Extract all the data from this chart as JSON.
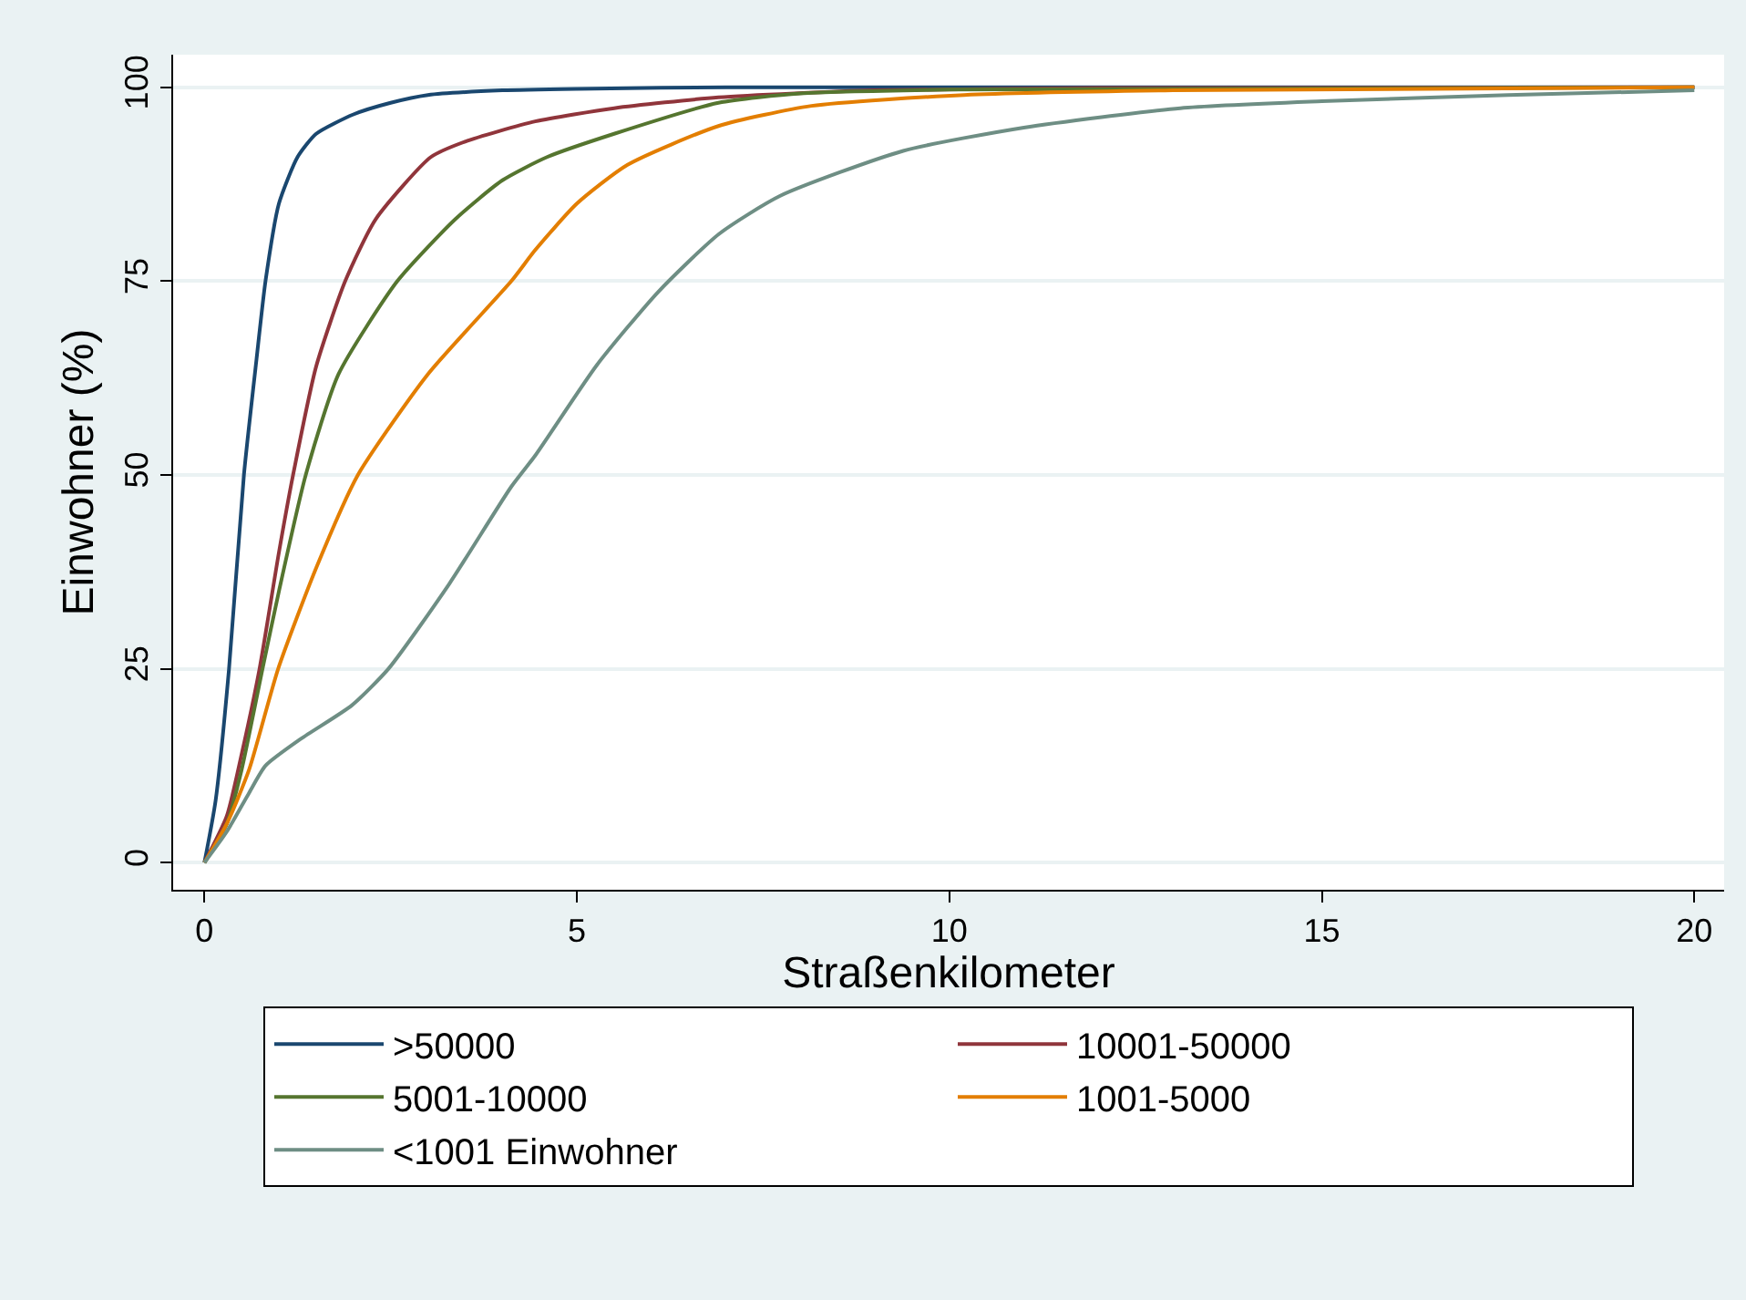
{
  "chart_data": {
    "type": "line",
    "xlabel": "Straßenkilometer",
    "ylabel": "Einwohner (%)",
    "xlim": [
      -0.42,
      20.4
    ],
    "xticks": [
      0,
      5,
      10,
      15,
      20
    ],
    "ylim": [
      -3.5,
      104.2
    ],
    "yticks": [
      0,
      25,
      50,
      75,
      100
    ],
    "grid": "y",
    "legend": "bottom",
    "marker": "none",
    "line_style": "solid",
    "series": [
      {
        "name": ">50000",
        "color": "#1a476f",
        "x": [
          0,
          0.15,
          0.33,
          0.53,
          0.7,
          0.82,
          1,
          1.25,
          1.5,
          2,
          2.5,
          3,
          4,
          5,
          7,
          20
        ],
        "values": [
          0,
          8,
          25,
          50,
          65,
          75,
          85,
          91,
          94,
          96.5,
          98,
          99,
          99.6,
          99.8,
          100,
          100
        ]
      },
      {
        "name": "10001-50000",
        "color": "#90353b",
        "x": [
          0,
          0.3,
          0.5,
          0.74,
          1,
          1.19,
          1.5,
          1.89,
          2.3,
          3.04,
          3.5,
          4.44,
          5.5,
          6.9,
          9,
          12,
          20
        ],
        "values": [
          0,
          6,
          14,
          25,
          40,
          50,
          64,
          75,
          83,
          91,
          93,
          95.6,
          97.3,
          98.7,
          99.6,
          99.9,
          100
        ]
      },
      {
        "name": "5001-10000",
        "color": "#55752f",
        "x": [
          0,
          0.3,
          0.5,
          0.78,
          1,
          1.36,
          1.8,
          2.59,
          3.37,
          4,
          4.6,
          5.5,
          6.9,
          8,
          10,
          20
        ],
        "values": [
          0,
          5,
          12,
          25,
          35,
          50,
          63,
          75,
          83,
          88,
          91,
          94,
          98,
          99.2,
          99.7,
          100
        ]
      },
      {
        "name": "1001-5000",
        "color": "#e37e00",
        "x": [
          0,
          0.3,
          0.6,
          0.99,
          1.5,
          2.06,
          3,
          4.12,
          4.44,
          5,
          5.68,
          6.9,
          8.15,
          10.2,
          13,
          20
        ],
        "values": [
          0,
          5,
          12,
          25,
          38,
          50,
          63,
          75,
          79,
          85,
          90,
          95,
          97.6,
          99,
          99.6,
          100
        ]
      },
      {
        "name": "<1001 Einwohner",
        "color": "#6e8e84",
        "x": [
          0,
          0.3,
          0.6,
          0.82,
          1.3,
          1.98,
          2.47,
          3.29,
          4.12,
          4.44,
          5.27,
          6.09,
          6.91,
          7.73,
          9.38,
          11,
          13.1,
          15,
          17.5,
          20
        ],
        "values": [
          0,
          4,
          9,
          12.5,
          16,
          20.3,
          25,
          36,
          48.5,
          52.5,
          64.2,
          73.6,
          81.1,
          86,
          91.8,
          94.8,
          97.3,
          98.2,
          99,
          99.6
        ]
      }
    ]
  }
}
